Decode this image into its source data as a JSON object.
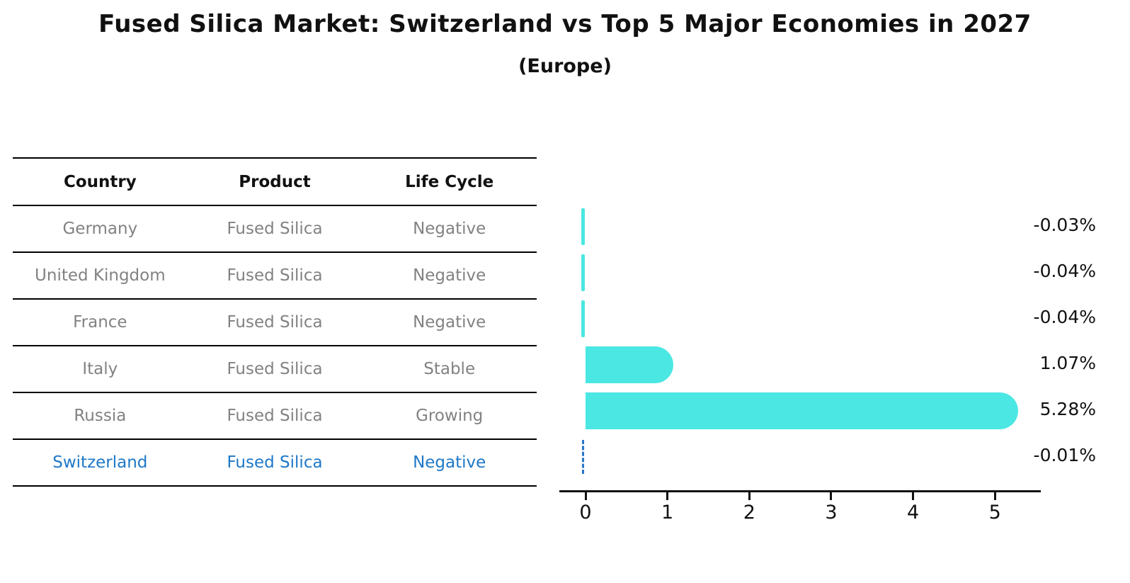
{
  "header": {
    "title": "Fused Silica Market: Switzerland vs Top 5 Major Economies in 2027",
    "subtitle": "(Europe)"
  },
  "table": {
    "headers": [
      "Country",
      "Product",
      "Life Cycle"
    ],
    "rows": [
      {
        "country": "Germany",
        "product": "Fused Silica",
        "life_cycle": "Negative",
        "highlighted": false
      },
      {
        "country": "United Kingdom",
        "product": "Fused Silica",
        "life_cycle": "Negative",
        "highlighted": false
      },
      {
        "country": "France",
        "product": "Fused Silica",
        "life_cycle": "Negative",
        "highlighted": false
      },
      {
        "country": "Italy",
        "product": "Fused Silica",
        "life_cycle": "Stable",
        "highlighted": false
      },
      {
        "country": "Russia",
        "product": "Fused Silica",
        "life_cycle": "Growing",
        "highlighted": false
      },
      {
        "country": "Switzerland",
        "product": "Fused Silica",
        "life_cycle": "Negative",
        "highlighted": true
      }
    ]
  },
  "chart_data": {
    "type": "bar",
    "orientation": "horizontal",
    "categories": [
      "Germany",
      "United Kingdom",
      "France",
      "Italy",
      "Russia",
      "Switzerland"
    ],
    "values": [
      -0.03,
      -0.04,
      -0.04,
      1.07,
      5.28,
      -0.01
    ],
    "value_labels": [
      "-0.03%",
      "-0.04%",
      "-0.04%",
      "1.07%",
      "5.28%",
      "-0.01%"
    ],
    "xticks": [
      "0",
      "1",
      "2",
      "3",
      "4",
      "5"
    ],
    "xlim": [
      -0.32,
      5.56
    ],
    "grid": false,
    "legend": "none",
    "bar_color": "#4AE7E3",
    "highlight_country": "Switzerland",
    "highlight_style": "dashed-outline",
    "highlight_color": "#2878C8",
    "text_color": "#111111",
    "muted_text_color": "#828282",
    "highlight_text_color": "#1E78C8"
  }
}
